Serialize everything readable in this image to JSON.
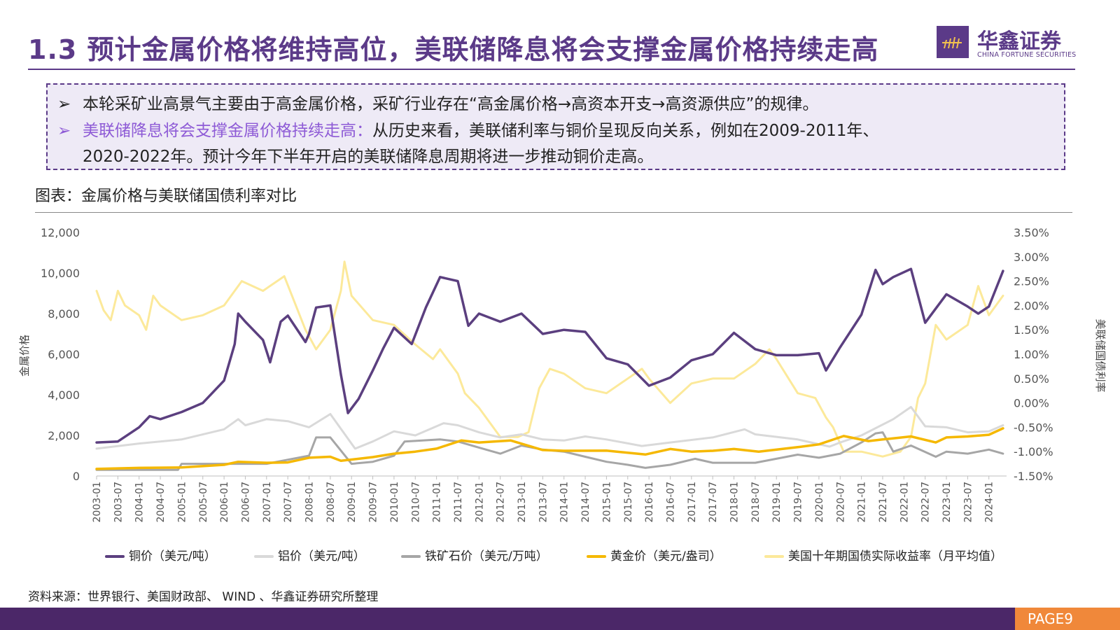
{
  "header": {
    "title": "1.3 预计金属价格将维持高位，美联储降息将会支撑金属价格持续走高"
  },
  "logo": {
    "name_cn": "华鑫证券",
    "name_en": "CHINA FORTUNE SECURITIES"
  },
  "bullets": {
    "arrow": "➢",
    "line1": "本轮采矿业高景气主要由于高金属价格，采矿行业存在“高金属价格→高资本开支→高资源供应”的规律。",
    "line2_highlight": "美联储降息将会支撑金属价格持续走高：",
    "line2_text": "从历史来看，美联储利率与铜价呈现反向关系，例如在2009-2011年、",
    "line3_text": "2020-2022年。预计今年下半年开启的美联储降息周期将进一步推动铜价走高。"
  },
  "figure": {
    "caption": "图表：金属价格与美联储国债利率对比",
    "source": "资料来源：世界银行、美国财政部、 WIND 、华鑫证券研究所整理"
  },
  "footer": {
    "page": "PAGE9"
  },
  "colors": {
    "brand": "#5b3a88",
    "copper": "#5b3f7f",
    "aluminum": "#d9d9d9",
    "iron": "#a6a6a6",
    "gold": "#f5b800",
    "yield": "#fce99a",
    "page_badge": "#f0883a",
    "footer_bar": "#4b2768"
  },
  "chart_data": {
    "type": "line",
    "title": "",
    "ylabel": "金属价格",
    "ylabel_right": "美联储国债利率",
    "ylim": [
      0,
      12000
    ],
    "ylim_right": [
      -1.5,
      3.5
    ],
    "y_ticks": [
      "0",
      "2,000",
      "4,000",
      "6,000",
      "8,000",
      "10,000",
      "12,000"
    ],
    "y_ticks_right": [
      "-1.50%",
      "-1.00%",
      "-0.50%",
      "0.00%",
      "0.50%",
      "1.00%",
      "1.50%",
      "2.00%",
      "2.50%",
      "3.00%",
      "3.50%"
    ],
    "x_ticks": [
      "2003-01",
      "2003-07",
      "2004-01",
      "2004-07",
      "2005-01",
      "2005-07",
      "2006-01",
      "2006-07",
      "2007-01",
      "2007-07",
      "2008-01",
      "2008-07",
      "2009-01",
      "2009-07",
      "2010-01",
      "2010-07",
      "2011-01",
      "2011-07",
      "2012-01",
      "2012-07",
      "2013-01",
      "2013-07",
      "2014-01",
      "2014-07",
      "2015-01",
      "2015-07",
      "2016-01",
      "2016-07",
      "2017-01",
      "2017-07",
      "2018-01",
      "2018-07",
      "2019-01",
      "2019-07",
      "2020-01",
      "2020-07",
      "2021-01",
      "2021-07",
      "2022-01",
      "2022-07",
      "2023-01",
      "2023-07",
      "2024-01"
    ],
    "x_range": [
      "2003-01",
      "2024-06"
    ],
    "grid": false,
    "legend_position": "bottom",
    "series": [
      {
        "name": "铜价（美元/吨）",
        "axis": "left",
        "points": [
          [
            "2003-01",
            1650
          ],
          [
            "2003-07",
            1700
          ],
          [
            "2004-01",
            2400
          ],
          [
            "2004-04",
            2950
          ],
          [
            "2004-07",
            2800
          ],
          [
            "2005-01",
            3150
          ],
          [
            "2005-07",
            3600
          ],
          [
            "2006-01",
            4700
          ],
          [
            "2006-04",
            6500
          ],
          [
            "2006-05",
            8000
          ],
          [
            "2006-07",
            7600
          ],
          [
            "2006-12",
            6700
          ],
          [
            "2007-02",
            5600
          ],
          [
            "2007-05",
            7600
          ],
          [
            "2007-07",
            7900
          ],
          [
            "2007-12",
            6600
          ],
          [
            "2008-01",
            7000
          ],
          [
            "2008-03",
            8300
          ],
          [
            "2008-07",
            8400
          ],
          [
            "2008-10",
            5000
          ],
          [
            "2008-12",
            3100
          ],
          [
            "2009-03",
            3800
          ],
          [
            "2009-07",
            5200
          ],
          [
            "2009-10",
            6300
          ],
          [
            "2010-01",
            7300
          ],
          [
            "2010-06",
            6500
          ],
          [
            "2010-10",
            8300
          ],
          [
            "2011-02",
            9800
          ],
          [
            "2011-07",
            9600
          ],
          [
            "2011-10",
            7400
          ],
          [
            "2012-01",
            8000
          ],
          [
            "2012-07",
            7600
          ],
          [
            "2013-01",
            8000
          ],
          [
            "2013-07",
            7000
          ],
          [
            "2014-01",
            7200
          ],
          [
            "2014-07",
            7100
          ],
          [
            "2015-01",
            5800
          ],
          [
            "2015-07",
            5500
          ],
          [
            "2015-11",
            4800
          ],
          [
            "2016-01",
            4450
          ],
          [
            "2016-07",
            4850
          ],
          [
            "2017-01",
            5700
          ],
          [
            "2017-07",
            6000
          ],
          [
            "2018-01",
            7050
          ],
          [
            "2018-07",
            6250
          ],
          [
            "2019-01",
            5950
          ],
          [
            "2019-07",
            5950
          ],
          [
            "2020-01",
            6050
          ],
          [
            "2020-03",
            5200
          ],
          [
            "2020-07",
            6350
          ],
          [
            "2021-01",
            7950
          ],
          [
            "2021-05",
            10150
          ],
          [
            "2021-07",
            9450
          ],
          [
            "2021-10",
            9800
          ],
          [
            "2022-03",
            10200
          ],
          [
            "2022-07",
            7550
          ],
          [
            "2023-01",
            8950
          ],
          [
            "2023-07",
            8350
          ],
          [
            "2023-10",
            8000
          ],
          [
            "2024-01",
            8350
          ],
          [
            "2024-05",
            10100
          ]
        ]
      },
      {
        "name": "铝价（美元/吨）",
        "axis": "left",
        "points": [
          [
            "2003-01",
            1350
          ],
          [
            "2004-01",
            1600
          ],
          [
            "2005-01",
            1800
          ],
          [
            "2006-01",
            2300
          ],
          [
            "2006-05",
            2800
          ],
          [
            "2006-07",
            2500
          ],
          [
            "2007-01",
            2800
          ],
          [
            "2007-07",
            2700
          ],
          [
            "2008-01",
            2400
          ],
          [
            "2008-07",
            3050
          ],
          [
            "2009-02",
            1350
          ],
          [
            "2009-07",
            1700
          ],
          [
            "2010-01",
            2200
          ],
          [
            "2010-07",
            2000
          ],
          [
            "2011-03",
            2600
          ],
          [
            "2011-07",
            2500
          ],
          [
            "2012-01",
            2150
          ],
          [
            "2012-07",
            1900
          ],
          [
            "2013-01",
            2050
          ],
          [
            "2013-07",
            1800
          ],
          [
            "2014-01",
            1750
          ],
          [
            "2014-07",
            1950
          ],
          [
            "2015-01",
            1800
          ],
          [
            "2015-11",
            1480
          ],
          [
            "2016-07",
            1650
          ],
          [
            "2017-07",
            1900
          ],
          [
            "2018-04",
            2300
          ],
          [
            "2018-07",
            2050
          ],
          [
            "2019-07",
            1800
          ],
          [
            "2020-04",
            1450
          ],
          [
            "2020-07",
            1650
          ],
          [
            "2021-01",
            2000
          ],
          [
            "2021-10",
            2800
          ],
          [
            "2022-03",
            3400
          ],
          [
            "2022-07",
            2450
          ],
          [
            "2023-01",
            2400
          ],
          [
            "2023-07",
            2150
          ],
          [
            "2024-01",
            2200
          ],
          [
            "2024-05",
            2500
          ]
        ]
      },
      {
        "name": "铁矿石价（美元/万吨）",
        "axis": "left",
        "points": [
          [
            "2003-01",
            300
          ],
          [
            "2004-12",
            300
          ],
          [
            "2005-01",
            600
          ],
          [
            "2007-01",
            600
          ],
          [
            "2008-01",
            1000
          ],
          [
            "2008-03",
            1900
          ],
          [
            "2008-07",
            1900
          ],
          [
            "2009-01",
            600
          ],
          [
            "2009-07",
            700
          ],
          [
            "2010-01",
            1000
          ],
          [
            "2010-04",
            1700
          ],
          [
            "2011-02",
            1800
          ],
          [
            "2011-07",
            1700
          ],
          [
            "2012-01",
            1400
          ],
          [
            "2012-07",
            1100
          ],
          [
            "2013-01",
            1500
          ],
          [
            "2013-07",
            1300
          ],
          [
            "2014-01",
            1200
          ],
          [
            "2014-07",
            950
          ],
          [
            "2015-01",
            700
          ],
          [
            "2015-07",
            550
          ],
          [
            "2015-12",
            400
          ],
          [
            "2016-07",
            550
          ],
          [
            "2017-02",
            850
          ],
          [
            "2017-07",
            650
          ],
          [
            "2018-07",
            650
          ],
          [
            "2019-07",
            1050
          ],
          [
            "2020-01",
            900
          ],
          [
            "2020-07",
            1100
          ],
          [
            "2021-01",
            1650
          ],
          [
            "2021-05",
            2100
          ],
          [
            "2021-07",
            2150
          ],
          [
            "2021-10",
            1200
          ],
          [
            "2022-03",
            1500
          ],
          [
            "2022-10",
            950
          ],
          [
            "2023-01",
            1200
          ],
          [
            "2023-07",
            1100
          ],
          [
            "2024-01",
            1300
          ],
          [
            "2024-05",
            1100
          ]
        ]
      },
      {
        "name": "黄金价（美元/盎司）",
        "axis": "left",
        "points": [
          [
            "2003-01",
            350
          ],
          [
            "2004-01",
            400
          ],
          [
            "2005-01",
            420
          ],
          [
            "2006-01",
            550
          ],
          [
            "2006-05",
            700
          ],
          [
            "2007-01",
            650
          ],
          [
            "2007-07",
            670
          ],
          [
            "2008-01",
            900
          ],
          [
            "2008-07",
            950
          ],
          [
            "2008-10",
            750
          ],
          [
            "2009-07",
            930
          ],
          [
            "2010-01",
            1100
          ],
          [
            "2010-07",
            1200
          ],
          [
            "2011-01",
            1350
          ],
          [
            "2011-08",
            1750
          ],
          [
            "2012-01",
            1650
          ],
          [
            "2012-10",
            1750
          ],
          [
            "2013-07",
            1280
          ],
          [
            "2014-01",
            1240
          ],
          [
            "2015-01",
            1250
          ],
          [
            "2015-12",
            1060
          ],
          [
            "2016-07",
            1330
          ],
          [
            "2017-01",
            1200
          ],
          [
            "2017-07",
            1240
          ],
          [
            "2018-01",
            1330
          ],
          [
            "2018-08",
            1200
          ],
          [
            "2019-07",
            1420
          ],
          [
            "2020-01",
            1560
          ],
          [
            "2020-08",
            1970
          ],
          [
            "2021-03",
            1720
          ],
          [
            "2021-07",
            1800
          ],
          [
            "2022-03",
            1950
          ],
          [
            "2022-10",
            1650
          ],
          [
            "2023-01",
            1900
          ],
          [
            "2023-07",
            1950
          ],
          [
            "2024-01",
            2030
          ],
          [
            "2024-05",
            2350
          ]
        ]
      },
      {
        "name": "美国十年期国债实际收益率（月平均值）",
        "axis": "right",
        "points": [
          [
            "2003-01",
            2.3
          ],
          [
            "2003-03",
            1.9
          ],
          [
            "2003-05",
            1.7
          ],
          [
            "2003-07",
            2.3
          ],
          [
            "2003-09",
            2.0
          ],
          [
            "2004-01",
            1.8
          ],
          [
            "2004-03",
            1.5
          ],
          [
            "2004-05",
            2.2
          ],
          [
            "2004-07",
            2.0
          ],
          [
            "2005-01",
            1.7
          ],
          [
            "2005-07",
            1.8
          ],
          [
            "2006-01",
            2.0
          ],
          [
            "2006-06",
            2.5
          ],
          [
            "2006-12",
            2.3
          ],
          [
            "2007-06",
            2.6
          ],
          [
            "2007-12",
            1.5
          ],
          [
            "2008-03",
            1.1
          ],
          [
            "2008-07",
            1.5
          ],
          [
            "2008-10",
            2.3
          ],
          [
            "2008-11",
            2.9
          ],
          [
            "2009-01",
            2.2
          ],
          [
            "2009-07",
            1.7
          ],
          [
            "2010-01",
            1.6
          ],
          [
            "2010-07",
            1.2
          ],
          [
            "2010-12",
            0.9
          ],
          [
            "2011-02",
            1.1
          ],
          [
            "2011-07",
            0.6
          ],
          [
            "2011-09",
            0.2
          ],
          [
            "2012-01",
            -0.1
          ],
          [
            "2012-07",
            -0.7
          ],
          [
            "2012-12",
            -0.7
          ],
          [
            "2013-03",
            -0.6
          ],
          [
            "2013-06",
            0.3
          ],
          [
            "2013-09",
            0.7
          ],
          [
            "2014-01",
            0.6
          ],
          [
            "2014-07",
            0.3
          ],
          [
            "2015-01",
            0.2
          ],
          [
            "2015-07",
            0.5
          ],
          [
            "2015-11",
            0.7
          ],
          [
            "2016-01",
            0.5
          ],
          [
            "2016-07",
            0.0
          ],
          [
            "2017-01",
            0.4
          ],
          [
            "2017-07",
            0.5
          ],
          [
            "2018-01",
            0.5
          ],
          [
            "2018-07",
            0.8
          ],
          [
            "2018-11",
            1.1
          ],
          [
            "2019-01",
            0.9
          ],
          [
            "2019-07",
            0.2
          ],
          [
            "2019-12",
            0.1
          ],
          [
            "2020-03",
            -0.3
          ],
          [
            "2020-05",
            -0.5
          ],
          [
            "2020-08",
            -1.0
          ],
          [
            "2021-01",
            -1.0
          ],
          [
            "2021-07",
            -1.1
          ],
          [
            "2021-12",
            -1.0
          ],
          [
            "2022-03",
            -0.7
          ],
          [
            "2022-05",
            0.1
          ],
          [
            "2022-07",
            0.4
          ],
          [
            "2022-10",
            1.6
          ],
          [
            "2023-01",
            1.3
          ],
          [
            "2023-07",
            1.6
          ],
          [
            "2023-10",
            2.4
          ],
          [
            "2024-01",
            1.8
          ],
          [
            "2024-05",
            2.2
          ]
        ]
      }
    ]
  }
}
